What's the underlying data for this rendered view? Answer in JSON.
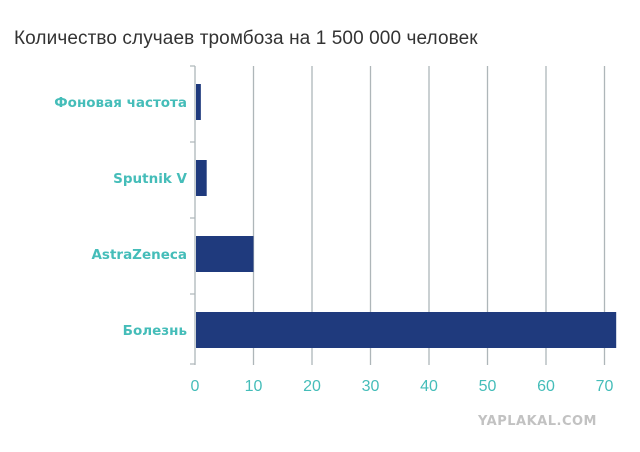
{
  "page": {
    "watermark": "YAPLAKAL.COM"
  },
  "chart_data": {
    "type": "bar",
    "orientation": "horizontal",
    "title": "Количество случаев тромбоза на 1 500 000 человек",
    "categories": [
      "Фоновая частота",
      "Sputnik V",
      "AstraZeneca",
      "Болезнь"
    ],
    "values": [
      1,
      2,
      10,
      72
    ],
    "xlim": [
      0,
      72
    ],
    "xticks": [
      "0",
      "10",
      "20",
      "30",
      "40",
      "50",
      "60",
      "70"
    ],
    "xtick_values": [
      0,
      10,
      20,
      30,
      40,
      50,
      60,
      70
    ],
    "xlabel": "",
    "ylabel": "",
    "grid": true,
    "colors": {
      "bar": "#1f3a7d",
      "category_label": "#45bdb9",
      "tick_label": "#45bdb9",
      "grid": "#aeb6b9",
      "title": "#333333"
    }
  }
}
